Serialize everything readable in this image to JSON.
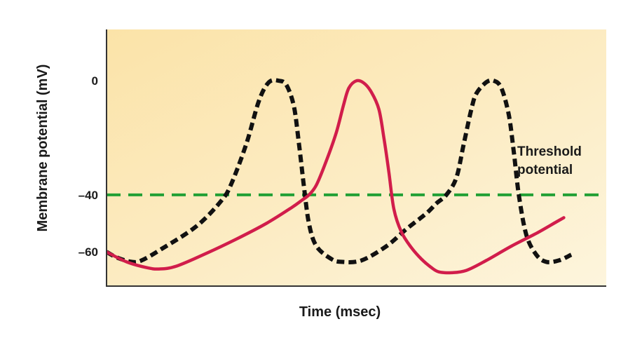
{
  "chart_data": {
    "type": "line",
    "title": "",
    "xlabel": "Time (msec)",
    "ylabel": "Membrane potential (mV)",
    "yticks": [
      {
        "value": 0,
        "label": "0"
      },
      {
        "value": -40,
        "label": "–40"
      },
      {
        "value": -60,
        "label": "–60"
      }
    ],
    "ylim": [
      -72,
      18
    ],
    "xlim": [
      0,
      100
    ],
    "grid": false,
    "threshold": {
      "value": -40,
      "label_lines": [
        "Threshold",
        "potential"
      ],
      "color": "#22a035"
    },
    "series": [
      {
        "style": "dashed",
        "color": "#111111",
        "points": [
          [
            0,
            -60
          ],
          [
            2.1,
            -62
          ],
          [
            5,
            -63.5
          ],
          [
            7,
            -63
          ],
          [
            11,
            -59
          ],
          [
            18,
            -51
          ],
          [
            23,
            -42
          ],
          [
            25,
            -36
          ],
          [
            28,
            -22
          ],
          [
            30.5,
            -7
          ],
          [
            32.5,
            -0.5
          ],
          [
            34.5,
            0
          ],
          [
            36,
            -1.5
          ],
          [
            37.5,
            -9
          ],
          [
            38.5,
            -22
          ],
          [
            39.5,
            -37
          ],
          [
            40.5,
            -50
          ],
          [
            42,
            -58
          ],
          [
            45,
            -62.5
          ],
          [
            47,
            -63.5
          ],
          [
            51,
            -63
          ],
          [
            56,
            -58
          ],
          [
            60,
            -52
          ],
          [
            64,
            -46.5
          ],
          [
            66,
            -43
          ],
          [
            68,
            -40
          ],
          [
            70,
            -34
          ],
          [
            71.5,
            -22
          ],
          [
            73,
            -10
          ],
          [
            74,
            -4.5
          ],
          [
            76,
            -0.5
          ],
          [
            77.5,
            0
          ],
          [
            79,
            -2.5
          ],
          [
            80.5,
            -12
          ],
          [
            81.5,
            -25
          ],
          [
            82.5,
            -40
          ],
          [
            84,
            -54
          ],
          [
            86,
            -61
          ],
          [
            88,
            -63.5
          ],
          [
            90.5,
            -63
          ],
          [
            93,
            -61
          ]
        ]
      },
      {
        "style": "solid",
        "color": "#d11d4b",
        "points": [
          [
            0,
            -60
          ],
          [
            4,
            -63.5
          ],
          [
            8,
            -65.5
          ],
          [
            10.5,
            -66
          ],
          [
            14,
            -65
          ],
          [
            20,
            -60.5
          ],
          [
            26,
            -55.5
          ],
          [
            32,
            -50
          ],
          [
            37,
            -44.5
          ],
          [
            39,
            -42
          ],
          [
            40.5,
            -40
          ],
          [
            42,
            -36.5
          ],
          [
            44,
            -28
          ],
          [
            46,
            -18
          ],
          [
            47.5,
            -8
          ],
          [
            48.5,
            -2.5
          ],
          [
            50,
            0
          ],
          [
            51.5,
            -0.8
          ],
          [
            53,
            -4
          ],
          [
            54.5,
            -10
          ],
          [
            55.5,
            -20
          ],
          [
            56.5,
            -32
          ],
          [
            57.5,
            -45
          ],
          [
            59,
            -53
          ],
          [
            61,
            -58.5
          ],
          [
            63,
            -62.5
          ],
          [
            65,
            -65.5
          ],
          [
            66.5,
            -67
          ],
          [
            69,
            -67.3
          ],
          [
            72,
            -66.5
          ],
          [
            76,
            -63
          ],
          [
            81,
            -58
          ],
          [
            86,
            -53.5
          ],
          [
            90,
            -49.5
          ],
          [
            91.5,
            -48
          ]
        ]
      }
    ]
  }
}
